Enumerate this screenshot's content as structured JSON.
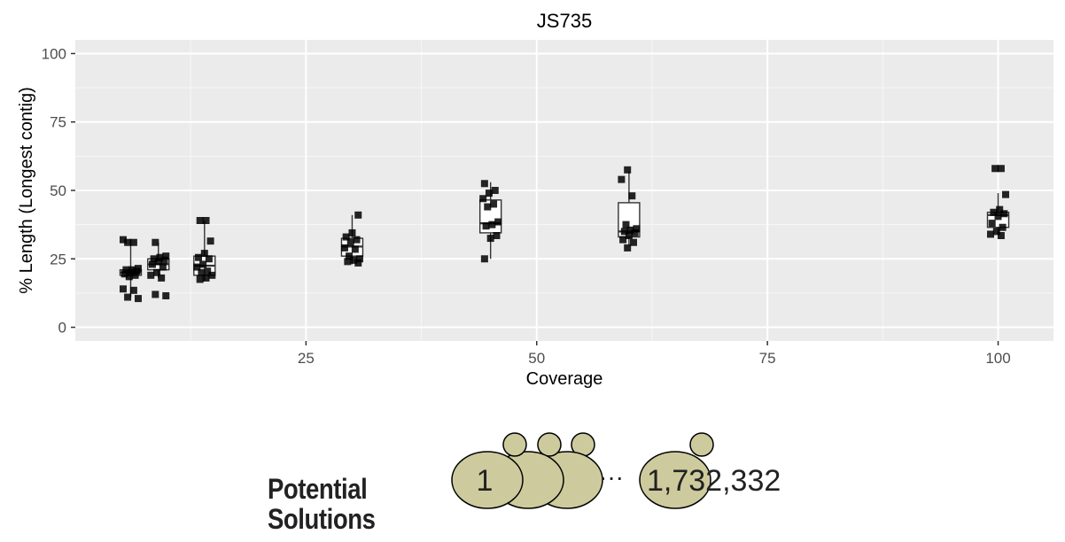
{
  "chart_data": {
    "type": "box+jitter",
    "title": "JS735",
    "xlabel": "Coverage",
    "ylabel": "% Length (Longest contig)",
    "xlim": [
      0,
      106
    ],
    "ylim": [
      -5,
      105
    ],
    "xticks": [
      25,
      50,
      75,
      100
    ],
    "xtick_labels": [
      "25",
      "50",
      "75",
      "100"
    ],
    "yticks": [
      0,
      25,
      50,
      75,
      100
    ],
    "ytick_labels": [
      "0",
      "25",
      "50",
      "75",
      "100"
    ],
    "grid": true,
    "background": "#ebebeb",
    "groups": [
      {
        "x": 6,
        "box": {
          "min": 11,
          "q1": 19,
          "median": 20,
          "q3": 21,
          "max": 32
        },
        "points": [
          32,
          31,
          31,
          21.5,
          21,
          21,
          20.5,
          20,
          19.5,
          19,
          18.5,
          14,
          13.5,
          11,
          10.5
        ]
      },
      {
        "x": 9,
        "box": {
          "min": 18,
          "q1": 21,
          "median": 23,
          "q3": 25,
          "max": 31
        },
        "points": [
          31,
          26,
          25.5,
          25,
          24.5,
          24,
          23,
          22,
          20,
          19,
          18,
          12,
          11.5
        ]
      },
      {
        "x": 14,
        "box": {
          "min": 17,
          "q1": 19,
          "median": 22.5,
          "q3": 26,
          "max": 39
        },
        "points": [
          39,
          39,
          31.5,
          27,
          25.5,
          25,
          23,
          22,
          20.5,
          20,
          19,
          18,
          17.5
        ]
      },
      {
        "x": 30,
        "box": {
          "min": 23,
          "q1": 26,
          "median": 29.5,
          "q3": 32.5,
          "max": 41
        },
        "points": [
          41,
          34.5,
          33,
          32,
          31,
          29,
          28.5,
          26,
          25,
          24.5,
          24,
          23.5
        ]
      },
      {
        "x": 45,
        "box": {
          "min": 25,
          "q1": 34.5,
          "median": 38,
          "q3": 46.5,
          "max": 53
        },
        "points": [
          52.5,
          50,
          49,
          47,
          45,
          44,
          38.5,
          37.5,
          37,
          33.5,
          32.5,
          25
        ]
      },
      {
        "x": 60,
        "box": {
          "min": 30,
          "q1": 33,
          "median": 35,
          "q3": 45.5,
          "max": 57
        },
        "points": [
          57.5,
          54,
          48,
          37.5,
          36,
          35.5,
          35,
          34.5,
          33.5,
          32,
          31,
          29
        ]
      },
      {
        "x": 100,
        "box": {
          "min": 34,
          "q1": 36.5,
          "median": 41,
          "q3": 42,
          "max": 49
        },
        "points": [
          58,
          58,
          48.5,
          43,
          42,
          41.5,
          40.5,
          38,
          36.5,
          35,
          34,
          33.5
        ]
      }
    ]
  },
  "solutions": {
    "label_line1": "Potential",
    "label_line2": "Solutions",
    "first": "1",
    "ellipsis": "···",
    "last": "1,732,332",
    "cell_color": "#cdcb9d"
  }
}
